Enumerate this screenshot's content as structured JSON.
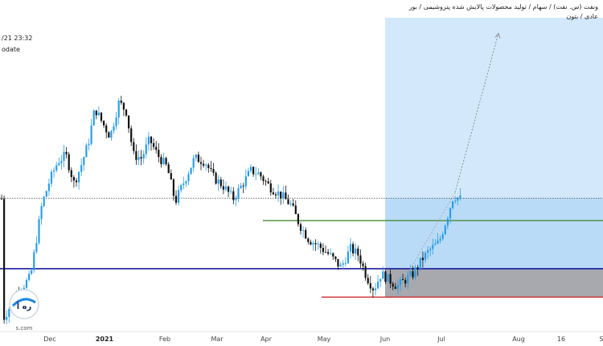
{
  "header": {
    "title": "ونفت (س. نفت) / سهام / تولید محصولات پالایش شده پتروشیمی / بور",
    "subtitle": "عادی / بتون",
    "datetime": "/21 23:32",
    "update_label": "odate"
  },
  "logo": {
    "text": "ره آ",
    "site": "s.com"
  },
  "colors": {
    "bull": "#2b9de6",
    "bear": "#111111",
    "zone_light": "#d3e9fb",
    "zone_mid": "#b9dbf7",
    "zone_grey": "#a7a9ae",
    "blue_line": "#1d1d9e",
    "green_line": "#4a8a3a",
    "red_line": "#d23b3b"
  },
  "chart_data": {
    "type": "candlestick",
    "x_ticks": [
      "Dec",
      "2021",
      "Feb",
      "Mar",
      "Apr",
      "May",
      "Jun",
      "Jul",
      "Aug",
      "16",
      "S"
    ],
    "bold_ticks": [
      "2021"
    ],
    "y_range": [
      0,
      100
    ],
    "levels": [
      {
        "name": "blue-support",
        "value": 19.6
      },
      {
        "name": "green-level",
        "value": 35.0
      },
      {
        "name": "red-level",
        "value": 10.5
      },
      {
        "name": "last-price",
        "value": 42.2
      }
    ],
    "position_box": {
      "top": 100,
      "entry": 19.6,
      "stop": 10.5
    },
    "projection": {
      "from": 44,
      "to": 100
    }
  }
}
